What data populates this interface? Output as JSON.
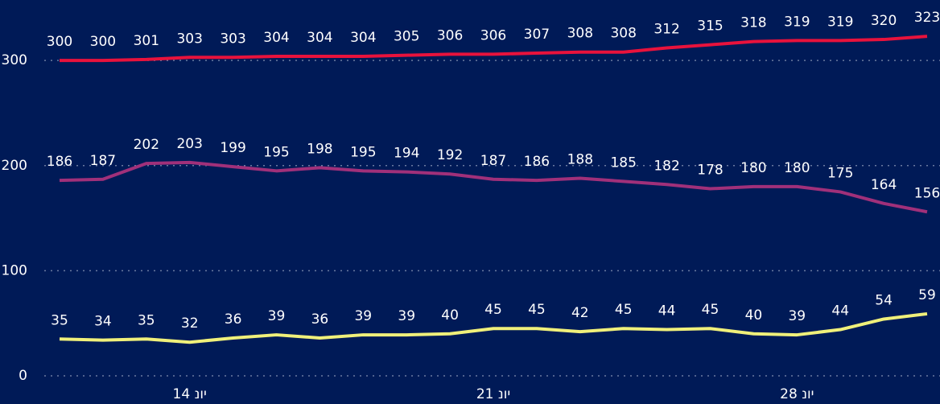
{
  "chart_data": {
    "type": "line",
    "categories": [
      null,
      null,
      null,
      "14 יונ",
      null,
      null,
      null,
      null,
      null,
      null,
      "21 יונ",
      null,
      null,
      null,
      null,
      null,
      null,
      "28 יונ",
      null,
      null,
      null
    ],
    "series": [
      {
        "color": "#e8123c",
        "values": [
          300,
          300,
          301,
          303,
          303,
          304,
          304,
          304,
          305,
          306,
          306,
          307,
          308,
          308,
          312,
          315,
          318,
          319,
          319,
          320,
          323
        ]
      },
      {
        "color": "#a0307a",
        "values": [
          186,
          187,
          202,
          203,
          199,
          195,
          198,
          195,
          194,
          192,
          187,
          186,
          188,
          185,
          182,
          178,
          180,
          180,
          175,
          164,
          156
        ]
      },
      {
        "color": "#f0f07a",
        "values": [
          35,
          34,
          35,
          32,
          36,
          39,
          36,
          39,
          39,
          40,
          45,
          45,
          42,
          45,
          44,
          45,
          40,
          39,
          44,
          54,
          59
        ]
      }
    ],
    "ylim": [
      0,
      330
    ],
    "yticks": [
      0,
      100,
      200,
      300
    ],
    "grid": true
  }
}
